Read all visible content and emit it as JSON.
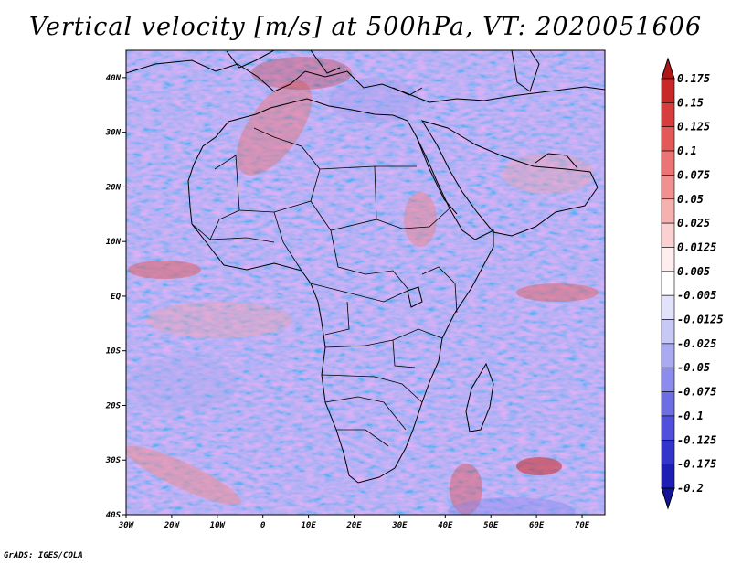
{
  "title": "Vertical velocity [m/s] at 500hPa, VT: 2020051606",
  "credit": "GrADS: IGES/COLA",
  "map": {
    "lon_ticks": [
      "30W",
      "20W",
      "10W",
      "0",
      "10E",
      "20E",
      "30E",
      "40E",
      "50E",
      "60E",
      "70E"
    ],
    "lat_ticks": [
      "40N",
      "30N",
      "20N",
      "10N",
      "EQ",
      "10S",
      "20S",
      "30S",
      "40S"
    ],
    "lon_range": [
      -30,
      75
    ],
    "lat_range": [
      -40,
      45
    ],
    "field_colors": {
      "positive": "#e8847c",
      "negative": "#7c7cf0",
      "land_base": "#c8c8f4"
    }
  },
  "colorbar": {
    "labels": [
      "0.175",
      "0.15",
      "0.125",
      "0.1",
      "0.075",
      "0.05",
      "0.025",
      "0.0125",
      "0.005",
      "-0.005",
      "-0.0125",
      "-0.025",
      "-0.05",
      "-0.075",
      "-0.1",
      "-0.125",
      "-0.175",
      "-0.2"
    ],
    "colors": [
      "#b01818",
      "#c82828",
      "#d83c3c",
      "#e45858",
      "#ec7474",
      "#f09090",
      "#f6b0b0",
      "#fad0d0",
      "#ffeeee",
      "#ffffff",
      "#e2e2fa",
      "#c8c8f6",
      "#aaaaf2",
      "#8c8cec",
      "#6e6ee4",
      "#5050dc",
      "#3434cc",
      "#1e1eb4",
      "#14149a"
    ]
  }
}
